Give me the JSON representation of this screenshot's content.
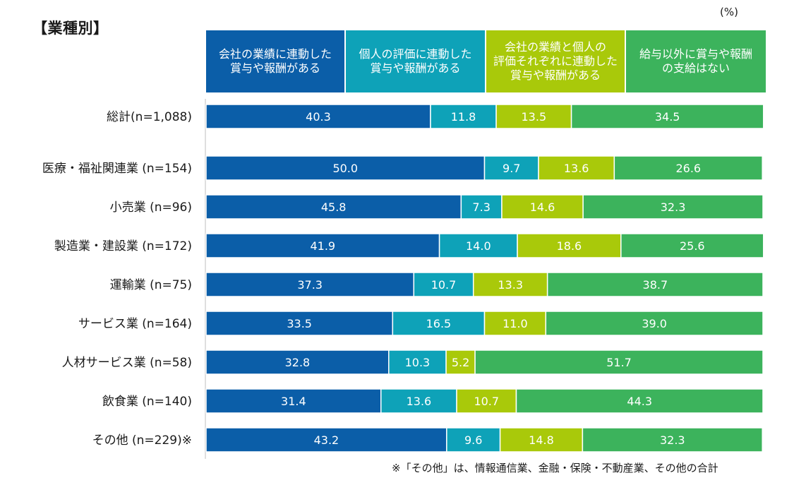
{
  "section_title": "【業種別】",
  "unit": "(%)",
  "footnote": "※「その他」は、情報通信業、金融・保険・不動産業、その他の合計",
  "chart_data": {
    "type": "bar",
    "orientation": "horizontal-stacked-100",
    "title": "【業種別】",
    "xlim": [
      0,
      100
    ],
    "categories": [
      "総計(n=1,088)",
      "医療・福祉関連業 (n=154)",
      "小売業 (n=96)",
      "製造業・建設業 (n=172)",
      "運輸業 (n=75)",
      "サービス業 (n=164)",
      "人材サービス業 (n=58)",
      "飲食業 (n=140)",
      "その他 (n=229)※"
    ],
    "series": [
      {
        "name": "会社の業績に連動した\n賞与や報酬がある",
        "color": "#0b5ea8",
        "values": [
          40.3,
          50.0,
          45.8,
          41.9,
          37.3,
          33.5,
          32.8,
          31.4,
          43.2
        ]
      },
      {
        "name": "個人の評価に連動した\n賞与や報酬がある",
        "color": "#0ea2b8",
        "values": [
          11.8,
          9.7,
          7.3,
          14.0,
          10.7,
          16.5,
          10.3,
          13.6,
          9.6
        ]
      },
      {
        "name": "会社の業績と個人の\n評価それぞれに連動した\n賞与や報酬がある",
        "color": "#a9c90a",
        "values": [
          13.5,
          13.6,
          14.6,
          18.6,
          13.3,
          11.0,
          5.2,
          10.7,
          14.8
        ]
      },
      {
        "name": "給与以外に賞与や報酬\nの支給はない",
        "color": "#3cb35c",
        "values": [
          34.5,
          26.6,
          32.3,
          25.6,
          38.7,
          39.0,
          51.7,
          44.3,
          32.3
        ]
      }
    ]
  }
}
